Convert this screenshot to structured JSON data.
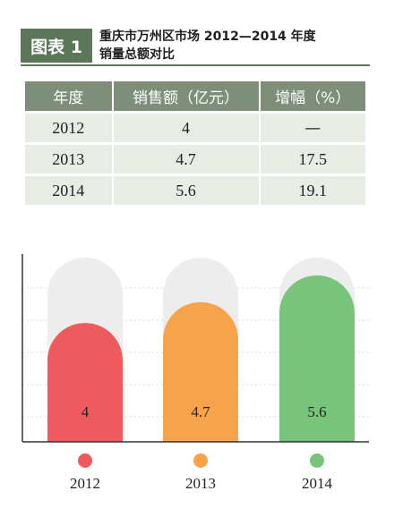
{
  "header": {
    "badge": "图表 1",
    "title_line1": "重庆市万州区市场 2012—2014 年度",
    "title_line2": "销量总额对比"
  },
  "table": {
    "headers": [
      "年度",
      "销售额（亿元）",
      "增幅（%）"
    ],
    "rows": [
      [
        "2012",
        "4",
        "—"
      ],
      [
        "2013",
        "4.7",
        "17.5"
      ],
      [
        "2014",
        "5.6",
        "19.1"
      ]
    ]
  },
  "colors": {
    "accent": "#5b7659",
    "table_header": "#7d8f78",
    "table_cell": "#e7ece5",
    "series": [
      "#ef5a5e",
      "#f7a34b",
      "#78c47a"
    ],
    "track": "#ededed"
  },
  "chart_data": {
    "type": "bar",
    "categories": [
      "2012",
      "2013",
      "2014"
    ],
    "values": [
      4,
      4.7,
      5.6
    ],
    "value_labels": [
      "4",
      "4.7",
      "5.6"
    ],
    "ylim": [
      0,
      6.2
    ],
    "grid": true,
    "legend": "none",
    "title": "",
    "xlabel": "",
    "ylabel": ""
  }
}
